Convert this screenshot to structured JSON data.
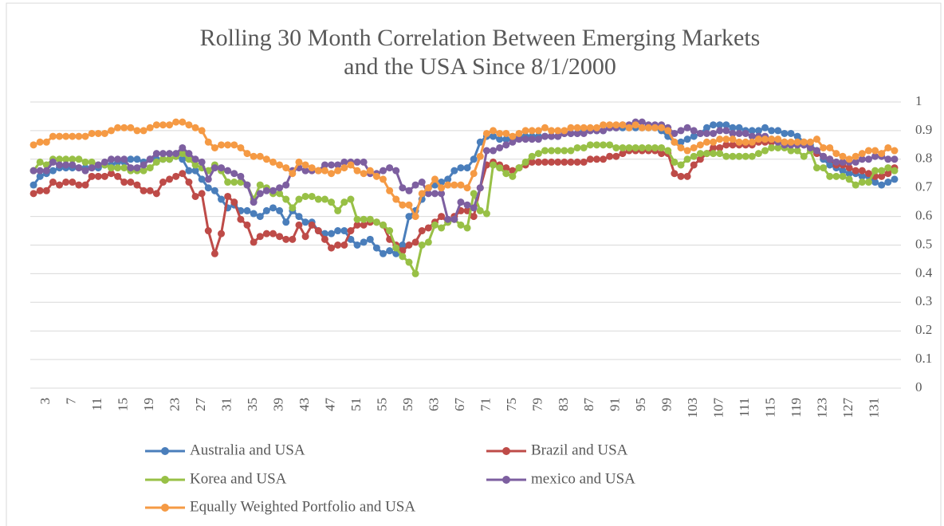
{
  "chart_data": {
    "type": "line",
    "title": [
      "Rolling 30 Month Correlation Between Emerging Markets",
      "and the USA Since 8/1/2000"
    ],
    "categories": [
      null,
      null,
      3,
      null,
      null,
      null,
      7,
      null,
      null,
      null,
      11,
      null,
      null,
      null,
      15,
      null,
      null,
      null,
      19,
      null,
      null,
      null,
      23,
      null,
      null,
      null,
      27,
      null,
      null,
      null,
      31,
      null,
      null,
      null,
      35,
      null,
      null,
      null,
      39,
      null,
      null,
      null,
      43,
      null,
      null,
      null,
      47,
      null,
      null,
      null,
      51,
      null,
      null,
      null,
      55,
      null,
      null,
      null,
      59,
      null,
      null,
      null,
      63,
      null,
      null,
      null,
      67,
      null,
      null,
      null,
      71,
      null,
      null,
      null,
      75,
      null,
      null,
      null,
      79,
      null,
      null,
      null,
      83,
      null,
      null,
      null,
      87,
      null,
      null,
      null,
      91,
      null,
      null,
      null,
      95,
      null,
      null,
      null,
      99,
      null,
      null,
      null,
      103,
      null,
      null,
      null,
      107,
      null,
      null,
      null,
      111,
      null,
      null,
      null,
      115,
      null,
      null,
      null,
      119,
      null,
      null,
      null,
      123,
      null,
      null,
      null,
      127,
      null,
      null,
      null,
      131,
      null,
      null,
      null
    ],
    "ylim": [
      0,
      1
    ],
    "yticks": [
      0,
      0.1,
      0.2,
      0.3,
      0.4,
      0.5,
      0.6,
      0.7,
      0.8,
      0.9,
      1
    ],
    "grid": true,
    "series": [
      {
        "name": "Australia and USA",
        "color": "#4a7ebb",
        "values": [
          0.71,
          0.74,
          0.75,
          0.76,
          0.77,
          0.77,
          0.77,
          0.77,
          0.77,
          0.77,
          0.77,
          0.78,
          0.78,
          0.79,
          0.79,
          0.8,
          0.8,
          0.79,
          0.8,
          0.8,
          0.8,
          0.8,
          0.81,
          0.8,
          0.76,
          0.76,
          0.73,
          0.7,
          0.69,
          0.66,
          0.63,
          0.64,
          0.62,
          0.62,
          0.61,
          0.6,
          0.62,
          0.63,
          0.62,
          0.58,
          0.62,
          0.6,
          0.58,
          0.58,
          0.55,
          0.54,
          0.54,
          0.55,
          0.55,
          0.52,
          0.5,
          0.51,
          0.52,
          0.49,
          0.47,
          0.48,
          0.47,
          0.5,
          0.6,
          0.62,
          0.66,
          0.7,
          0.71,
          0.72,
          0.73,
          0.76,
          0.77,
          0.77,
          0.8,
          0.86,
          0.88,
          0.88,
          0.87,
          0.87,
          0.87,
          0.88,
          0.88,
          0.88,
          0.88,
          0.88,
          0.88,
          0.88,
          0.89,
          0.89,
          0.89,
          0.9,
          0.9,
          0.9,
          0.9,
          0.91,
          0.91,
          0.91,
          0.91,
          0.91,
          0.91,
          0.91,
          0.91,
          0.9,
          0.88,
          0.86,
          0.86,
          0.87,
          0.88,
          0.89,
          0.91,
          0.92,
          0.92,
          0.92,
          0.91,
          0.91,
          0.9,
          0.9,
          0.9,
          0.91,
          0.9,
          0.9,
          0.89,
          0.89,
          0.88,
          0.86,
          0.85,
          0.83,
          0.8,
          0.78,
          0.77,
          0.76,
          0.75,
          0.75,
          0.74,
          0.74,
          0.72,
          0.71,
          0.72,
          0.73
        ]
      },
      {
        "name": "Brazil and USA",
        "color": "#be4b48",
        "values": [
          0.68,
          0.69,
          0.69,
          0.72,
          0.71,
          0.72,
          0.72,
          0.71,
          0.71,
          0.74,
          0.74,
          0.74,
          0.75,
          0.74,
          0.72,
          0.72,
          0.71,
          0.69,
          0.69,
          0.68,
          0.72,
          0.73,
          0.74,
          0.75,
          0.72,
          0.67,
          0.68,
          0.55,
          0.47,
          0.54,
          0.67,
          0.65,
          0.59,
          0.57,
          0.51,
          0.53,
          0.54,
          0.54,
          0.53,
          0.52,
          0.52,
          0.57,
          0.53,
          0.57,
          0.55,
          0.52,
          0.49,
          0.5,
          0.5,
          0.55,
          0.57,
          0.57,
          0.58,
          0.58,
          0.57,
          0.52,
          0.5,
          0.48,
          0.5,
          0.51,
          0.55,
          0.56,
          0.58,
          0.6,
          0.58,
          0.6,
          0.62,
          0.62,
          0.6,
          0.7,
          0.78,
          0.79,
          0.78,
          0.77,
          0.76,
          0.77,
          0.78,
          0.79,
          0.79,
          0.79,
          0.79,
          0.79,
          0.79,
          0.79,
          0.79,
          0.79,
          0.8,
          0.8,
          0.8,
          0.81,
          0.81,
          0.82,
          0.83,
          0.83,
          0.83,
          0.83,
          0.83,
          0.82,
          0.82,
          0.75,
          0.74,
          0.74,
          0.78,
          0.8,
          0.82,
          0.84,
          0.84,
          0.85,
          0.85,
          0.85,
          0.85,
          0.85,
          0.86,
          0.86,
          0.86,
          0.86,
          0.86,
          0.85,
          0.85,
          0.85,
          0.84,
          0.82,
          0.81,
          0.8,
          0.78,
          0.78,
          0.77,
          0.76,
          0.76,
          0.75,
          0.74,
          0.74,
          0.75,
          0.77
        ]
      },
      {
        "name": "Korea and USA",
        "color": "#98c046",
        "values": [
          0.76,
          0.79,
          0.78,
          0.8,
          0.8,
          0.8,
          0.8,
          0.8,
          0.79,
          0.79,
          0.78,
          0.78,
          0.77,
          0.77,
          0.77,
          0.76,
          0.76,
          0.76,
          0.77,
          0.79,
          0.8,
          0.8,
          0.81,
          0.82,
          0.8,
          0.78,
          0.77,
          0.76,
          0.78,
          0.76,
          0.72,
          0.72,
          0.72,
          0.71,
          0.66,
          0.71,
          0.7,
          0.68,
          0.68,
          0.66,
          0.63,
          0.66,
          0.67,
          0.67,
          0.66,
          0.66,
          0.65,
          0.62,
          0.65,
          0.66,
          0.59,
          0.59,
          0.59,
          0.58,
          0.57,
          0.55,
          0.49,
          0.46,
          0.44,
          0.4,
          0.5,
          0.51,
          0.57,
          0.56,
          0.58,
          0.59,
          0.57,
          0.56,
          0.68,
          0.62,
          0.61,
          0.78,
          0.77,
          0.75,
          0.74,
          0.77,
          0.79,
          0.81,
          0.82,
          0.83,
          0.83,
          0.83,
          0.83,
          0.83,
          0.84,
          0.84,
          0.85,
          0.85,
          0.85,
          0.85,
          0.84,
          0.84,
          0.84,
          0.84,
          0.84,
          0.84,
          0.84,
          0.84,
          0.83,
          0.79,
          0.78,
          0.8,
          0.81,
          0.82,
          0.82,
          0.82,
          0.82,
          0.81,
          0.81,
          0.81,
          0.81,
          0.81,
          0.82,
          0.83,
          0.84,
          0.84,
          0.84,
          0.83,
          0.83,
          0.81,
          0.83,
          0.77,
          0.77,
          0.74,
          0.74,
          0.74,
          0.73,
          0.71,
          0.72,
          0.72,
          0.76,
          0.76,
          0.77,
          0.76
        ]
      },
      {
        "name": "mexico and USA",
        "color": "#7d5fa0",
        "values": [
          0.76,
          0.76,
          0.76,
          0.79,
          0.78,
          0.78,
          0.78,
          0.77,
          0.76,
          0.77,
          0.78,
          0.79,
          0.8,
          0.8,
          0.8,
          0.77,
          0.77,
          0.78,
          0.8,
          0.82,
          0.82,
          0.82,
          0.82,
          0.84,
          0.82,
          0.8,
          0.79,
          0.73,
          0.77,
          0.77,
          0.76,
          0.75,
          0.74,
          0.71,
          0.65,
          0.68,
          0.69,
          0.69,
          0.7,
          0.71,
          0.76,
          0.77,
          0.76,
          0.76,
          0.76,
          0.78,
          0.78,
          0.78,
          0.79,
          0.79,
          0.79,
          0.79,
          0.75,
          0.75,
          0.76,
          0.77,
          0.76,
          0.7,
          0.69,
          0.71,
          0.72,
          0.68,
          0.68,
          0.68,
          0.59,
          0.59,
          0.65,
          0.64,
          0.63,
          0.7,
          0.83,
          0.83,
          0.84,
          0.85,
          0.86,
          0.87,
          0.87,
          0.87,
          0.87,
          0.88,
          0.88,
          0.88,
          0.89,
          0.89,
          0.89,
          0.89,
          0.9,
          0.9,
          0.9,
          0.91,
          0.91,
          0.92,
          0.92,
          0.93,
          0.93,
          0.92,
          0.92,
          0.92,
          0.91,
          0.89,
          0.9,
          0.91,
          0.9,
          0.89,
          0.89,
          0.89,
          0.9,
          0.9,
          0.89,
          0.89,
          0.89,
          0.88,
          0.88,
          0.88,
          0.87,
          0.86,
          0.85,
          0.85,
          0.85,
          0.85,
          0.84,
          0.83,
          0.81,
          0.8,
          0.79,
          0.79,
          0.79,
          0.79,
          0.8,
          0.8,
          0.81,
          0.81,
          0.8,
          0.8
        ]
      },
      {
        "name": "Equally Weighted Portfolio and USA",
        "color": "#f59a44",
        "values": [
          0.85,
          0.86,
          0.86,
          0.88,
          0.88,
          0.88,
          0.88,
          0.88,
          0.88,
          0.89,
          0.89,
          0.89,
          0.9,
          0.91,
          0.91,
          0.91,
          0.9,
          0.9,
          0.91,
          0.92,
          0.92,
          0.92,
          0.93,
          0.93,
          0.92,
          0.91,
          0.9,
          0.86,
          0.84,
          0.85,
          0.85,
          0.85,
          0.84,
          0.82,
          0.81,
          0.81,
          0.8,
          0.79,
          0.78,
          0.77,
          0.75,
          0.79,
          0.78,
          0.77,
          0.76,
          0.76,
          0.75,
          0.76,
          0.77,
          0.78,
          0.76,
          0.75,
          0.76,
          0.74,
          0.73,
          0.69,
          0.66,
          0.64,
          0.64,
          0.6,
          0.68,
          0.7,
          0.73,
          0.7,
          0.71,
          0.71,
          0.71,
          0.7,
          0.75,
          0.81,
          0.89,
          0.9,
          0.89,
          0.89,
          0.88,
          0.89,
          0.9,
          0.9,
          0.9,
          0.91,
          0.9,
          0.9,
          0.9,
          0.91,
          0.91,
          0.91,
          0.91,
          0.91,
          0.92,
          0.92,
          0.92,
          0.92,
          0.91,
          0.92,
          0.91,
          0.91,
          0.91,
          0.91,
          0.9,
          0.86,
          0.84,
          0.83,
          0.84,
          0.85,
          0.86,
          0.86,
          0.87,
          0.87,
          0.87,
          0.86,
          0.86,
          0.86,
          0.87,
          0.87,
          0.87,
          0.87,
          0.86,
          0.86,
          0.86,
          0.86,
          0.86,
          0.87,
          0.84,
          0.84,
          0.82,
          0.81,
          0.8,
          0.81,
          0.82,
          0.83,
          0.83,
          0.82,
          0.84,
          0.83
        ]
      }
    ]
  }
}
